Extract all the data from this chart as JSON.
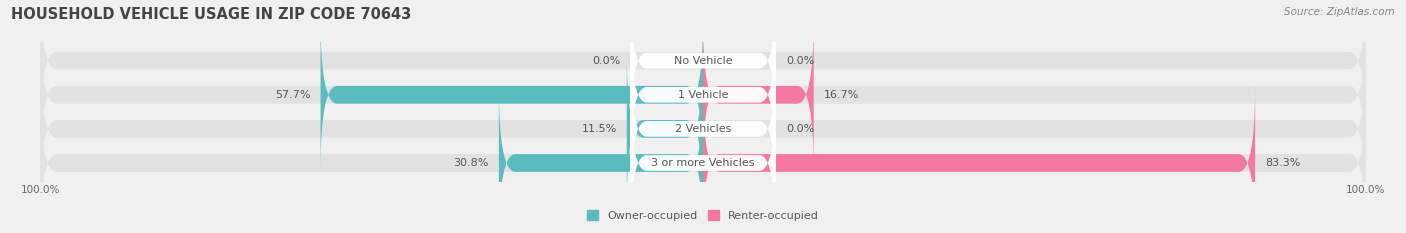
{
  "title": "HOUSEHOLD VEHICLE USAGE IN ZIP CODE 70643",
  "source": "Source: ZipAtlas.com",
  "categories": [
    "No Vehicle",
    "1 Vehicle",
    "2 Vehicles",
    "3 or more Vehicles"
  ],
  "owner_values": [
    0.0,
    57.7,
    11.5,
    30.8
  ],
  "renter_values": [
    0.0,
    16.7,
    0.0,
    83.3
  ],
  "owner_color": "#5bbcbf",
  "renter_color": "#f478a0",
  "bg_color": "#f0f0f0",
  "bar_bg_color": "#e2e2e2",
  "label_bg_color": "#ffffff",
  "title_fontsize": 10.5,
  "source_fontsize": 7.5,
  "label_fontsize": 8,
  "value_fontsize": 8,
  "axis_label_fontsize": 7.5,
  "bar_height": 0.52,
  "legend_owner": "Owner-occupied",
  "legend_renter": "Renter-occupied"
}
